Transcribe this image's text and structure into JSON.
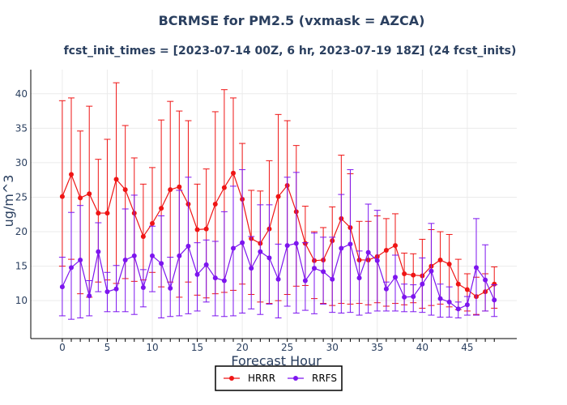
{
  "chart_data": {
    "type": "line",
    "title": "BCRMSE for PM2.5 (vxmask = AZCA)",
    "subtitle": "fcst_init_times = [2023-07-14 00Z, 6 hr, 2023-07-19 18Z] (24 fcst_inits)",
    "xlabel": "Forecast Hour",
    "ylabel": "ug/m^3",
    "xlim": [
      -3.5,
      50.5
    ],
    "ylim": [
      4.5,
      43.5
    ],
    "xticks": [
      0,
      5,
      10,
      15,
      20,
      25,
      30,
      35,
      40,
      45
    ],
    "yticks": [
      10,
      15,
      20,
      25,
      30,
      35,
      40
    ],
    "x": [
      0,
      1,
      2,
      3,
      4,
      5,
      6,
      7,
      8,
      9,
      10,
      11,
      12,
      13,
      14,
      15,
      16,
      17,
      18,
      19,
      20,
      21,
      22,
      23,
      24,
      25,
      26,
      27,
      28,
      29,
      30,
      31,
      32,
      33,
      34,
      35,
      36,
      37,
      38,
      39,
      40,
      41,
      42,
      43,
      44,
      45,
      46,
      47,
      48
    ],
    "legend_position": "bottom-center",
    "series": [
      {
        "name": "HRRR",
        "color": "#ef1515",
        "values": [
          25.1,
          28.3,
          24.9,
          25.5,
          22.7,
          22.7,
          27.6,
          26.1,
          22.7,
          19.3,
          21.2,
          23.4,
          26.1,
          26.5,
          24.0,
          20.3,
          20.4,
          24.0,
          26.4,
          28.5,
          24.7,
          19.0,
          18.3,
          20.4,
          25.1,
          26.7,
          22.9,
          18.3,
          15.8,
          15.9,
          18.7,
          21.9,
          20.6,
          15.9,
          15.9,
          16.4,
          17.3,
          18.0,
          13.9,
          13.7,
          13.6,
          15.0,
          15.9,
          15.3,
          12.4,
          11.6,
          10.6,
          11.3,
          12.4
        ],
        "upper": [
          39.0,
          39.4,
          34.6,
          38.2,
          30.5,
          33.4,
          41.6,
          35.4,
          30.7,
          26.9,
          29.3,
          36.2,
          38.9,
          37.5,
          36.1,
          26.9,
          29.1,
          37.4,
          40.6,
          39.4,
          32.8,
          26.0,
          25.9,
          30.3,
          37.0,
          36.1,
          32.5,
          23.7,
          20.0,
          20.6,
          23.6,
          31.1,
          28.4,
          21.5,
          21.5,
          22.3,
          21.9,
          22.6,
          16.9,
          16.8,
          18.9,
          20.3,
          20.0,
          19.6,
          16.0,
          13.9,
          13.4,
          13.9,
          14.9
        ],
        "lower": [
          15.0,
          16.0,
          11.0,
          10.5,
          12.7,
          13.0,
          12.5,
          13.2,
          12.8,
          13.0,
          14.1,
          12.0,
          12.7,
          10.5,
          12.7,
          10.8,
          10.4,
          11.0,
          11.2,
          11.5,
          12.4,
          10.9,
          9.8,
          9.6,
          10.0,
          10.9,
          12.1,
          12.2,
          10.3,
          9.6,
          9.3,
          9.6,
          9.5,
          9.6,
          9.4,
          9.7,
          9.2,
          9.6,
          9.4,
          9.7,
          8.9,
          9.3,
          9.5,
          9.1,
          8.7,
          8.5,
          8.0,
          8.5,
          8.9
        ]
      },
      {
        "name": "RRFS",
        "color": "#7d15ef",
        "values": [
          12.0,
          14.8,
          15.9,
          10.7,
          17.1,
          11.3,
          11.7,
          15.9,
          16.5,
          11.9,
          16.5,
          15.4,
          11.8,
          16.5,
          17.9,
          13.8,
          15.2,
          13.3,
          12.9,
          17.6,
          18.4,
          14.7,
          17.1,
          16.2,
          13.1,
          18.0,
          18.3,
          12.9,
          14.7,
          14.2,
          13.1,
          17.6,
          18.2,
          13.3,
          17.0,
          15.8,
          11.7,
          13.4,
          10.5,
          10.6,
          12.4,
          14.3,
          10.3,
          9.8,
          8.8,
          9.4,
          14.8,
          13.0,
          10.1
        ],
        "upper": [
          16.3,
          22.8,
          23.8,
          12.9,
          21.3,
          14.1,
          15.1,
          23.3,
          25.3,
          14.5,
          20.8,
          22.3,
          16.3,
          26.0,
          27.9,
          18.4,
          18.8,
          18.6,
          22.9,
          26.6,
          29.0,
          19.3,
          23.9,
          23.9,
          18.2,
          27.9,
          28.6,
          18.4,
          19.8,
          19.2,
          19.2,
          25.4,
          29.0,
          17.2,
          24.0,
          23.1,
          12.7,
          16.6,
          12.4,
          12.3,
          16.2,
          21.2,
          12.4,
          12.0,
          9.8,
          10.6,
          21.9,
          18.1,
          12.3
        ],
        "lower": [
          7.8,
          7.3,
          7.5,
          7.8,
          11.3,
          8.4,
          8.4,
          8.4,
          8.0,
          9.1,
          11.3,
          7.5,
          7.7,
          7.8,
          8.1,
          8.5,
          9.8,
          7.8,
          7.7,
          7.8,
          8.2,
          8.8,
          8.0,
          9.5,
          7.5,
          9.2,
          8.2,
          8.6,
          8.1,
          9.5,
          8.3,
          8.2,
          8.3,
          7.9,
          8.2,
          8.5,
          8.5,
          8.5,
          8.4,
          8.4,
          8.3,
          7.9,
          7.6,
          7.6,
          7.5,
          7.9,
          7.9,
          8.5,
          7.7
        ]
      }
    ]
  }
}
